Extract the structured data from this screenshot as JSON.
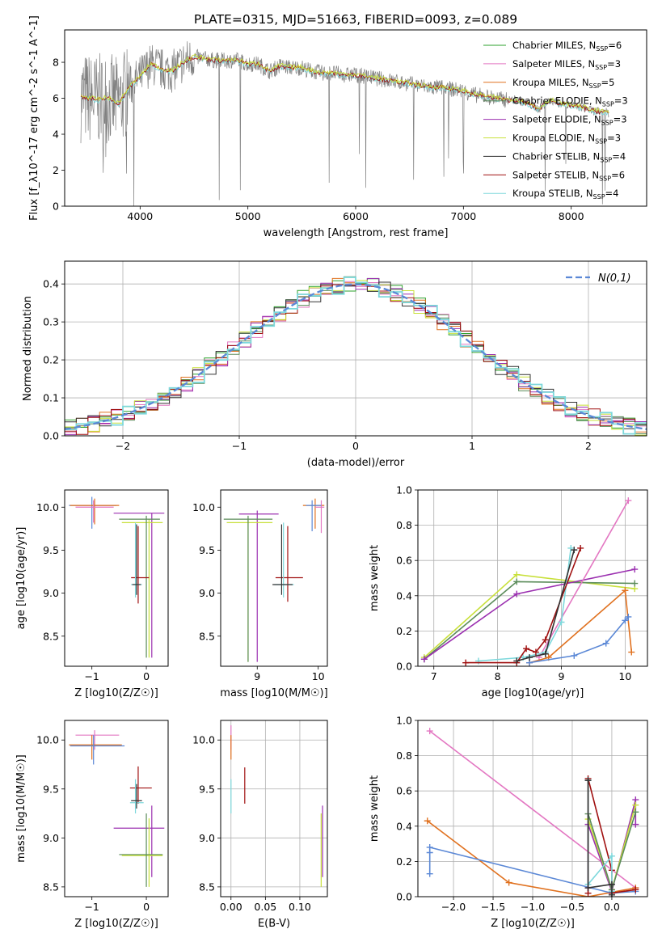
{
  "figure": {
    "title": "PLATE=0315, MJD=51663, FIBERID=0093, z=0.089"
  },
  "legend_entries": [
    {
      "label": "Chabrier MILES, N_{SSP}=6",
      "color": "#2ca02c"
    },
    {
      "label": "Salpeter MILES, N_{SSP}=3",
      "color": "#e377c2"
    },
    {
      "label": "Kroupa MILES, N_{SSP}=5",
      "color": "#e0711f"
    },
    {
      "label": "Chabrier ELODIE, N_{SSP}=3",
      "color": "#5b8c5a"
    },
    {
      "label": "Salpeter ELODIE, N_{SSP}=3",
      "color": "#9b30b0"
    },
    {
      "label": "Kroupa ELODIE, N_{SSP}=3",
      "color": "#c8e03a"
    },
    {
      "label": "Chabrier STELIB, N_{SSP}=4",
      "color": "#333333"
    },
    {
      "label": "Salpeter STELIB, N_{SSP}=6",
      "color": "#a01010"
    },
    {
      "label": "Kroupa STELIB, N_{SSP}=4",
      "color": "#7dd8dc"
    }
  ],
  "chart_data": [
    {
      "id": "spectrum",
      "type": "line",
      "xlabel": "wavelength [Angstrom, rest frame]",
      "ylabel": "Flux [f_λ10^-17 erg cm^-2 s^-1 A^-1]",
      "xlim": [
        3300,
        8700
      ],
      "ylim": [
        0,
        9.8
      ],
      "xticks": [
        4000,
        5000,
        6000,
        7000,
        8000
      ],
      "yticks": [
        0,
        2,
        4,
        6,
        8
      ],
      "data_color": "#808080",
      "model_colors": [
        "#7dd8dc",
        "#a01010",
        "#c8e03a"
      ],
      "continuum": [
        [
          3450,
          6.1
        ],
        [
          3600,
          5.9
        ],
        [
          3700,
          6.0
        ],
        [
          3800,
          5.7
        ],
        [
          3900,
          6.6
        ],
        [
          4000,
          7.2
        ],
        [
          4100,
          7.9
        ],
        [
          4200,
          7.6
        ],
        [
          4300,
          7.5
        ],
        [
          4400,
          8.0
        ],
        [
          4500,
          8.3
        ],
        [
          4600,
          8.2
        ],
        [
          4700,
          8.1
        ],
        [
          4800,
          8.1
        ],
        [
          4900,
          8.1
        ],
        [
          5000,
          7.9
        ],
        [
          5100,
          7.9
        ],
        [
          5200,
          7.5
        ],
        [
          5300,
          7.8
        ],
        [
          5400,
          7.7
        ],
        [
          5500,
          7.7
        ],
        [
          5600,
          7.5
        ],
        [
          5700,
          7.4
        ],
        [
          5800,
          7.4
        ],
        [
          5900,
          7.3
        ],
        [
          6000,
          7.3
        ],
        [
          6100,
          7.2
        ],
        [
          6200,
          7.1
        ],
        [
          6300,
          7.0
        ],
        [
          6400,
          6.9
        ],
        [
          6500,
          6.8
        ],
        [
          6600,
          6.7
        ],
        [
          6700,
          6.6
        ],
        [
          6800,
          6.6
        ],
        [
          6900,
          6.5
        ],
        [
          7000,
          6.4
        ],
        [
          7100,
          6.2
        ],
        [
          7200,
          6.1
        ],
        [
          7300,
          6.0
        ],
        [
          7400,
          5.9
        ],
        [
          7500,
          5.9
        ],
        [
          7600,
          5.7
        ],
        [
          7700,
          5.4
        ],
        [
          7800,
          5.9
        ],
        [
          7900,
          5.7
        ],
        [
          8000,
          5.6
        ],
        [
          8100,
          5.5
        ],
        [
          8200,
          5.3
        ],
        [
          8350,
          5.2
        ]
      ]
    },
    {
      "id": "residuals",
      "type": "histogram",
      "xlabel": "(data-model)/error",
      "ylabel": "Normed distribution",
      "xlim": [
        -2.5,
        2.5
      ],
      "ylim": [
        0,
        0.46
      ],
      "xticks": [
        -2,
        -1,
        0,
        1,
        2
      ],
      "yticks": [
        0.0,
        0.1,
        0.2,
        0.3,
        0.4
      ],
      "normal_label": "N(0,1)",
      "normal_color": "#5b88d6"
    },
    {
      "id": "age_vs_Z",
      "type": "errorbar",
      "xlabel": "Z [log10(Z/Z☉)]",
      "ylabel": "age  [log10(age/yr)]",
      "xlim": [
        -1.5,
        0.4
      ],
      "ylim": [
        8.15,
        10.2
      ],
      "xticks": [
        -1,
        0
      ],
      "yticks": [
        8.5,
        9.0,
        9.5,
        10.0
      ],
      "points": [
        {
          "x": -1.0,
          "y": 10.02,
          "xlo": -1.42,
          "xhi": -0.55,
          "ylo": 9.75,
          "yhi": 10.12,
          "color": "#5b88d6"
        },
        {
          "x": -0.95,
          "y": 10.02,
          "xlo": -1.4,
          "xhi": -0.5,
          "ylo": 9.8,
          "yhi": 10.1,
          "color": "#e0711f"
        },
        {
          "x": -0.97,
          "y": 10.0,
          "xlo": -1.3,
          "xhi": -0.6,
          "ylo": 9.82,
          "yhi": 10.08,
          "color": "#e377c2"
        },
        {
          "x": 0.1,
          "y": 9.93,
          "xlo": -0.6,
          "xhi": 0.33,
          "ylo": 8.25,
          "yhi": 9.93,
          "color": "#9b30b0"
        },
        {
          "x": 0.05,
          "y": 9.82,
          "xlo": -0.45,
          "xhi": 0.3,
          "ylo": 8.25,
          "yhi": 9.86,
          "color": "#c8e03a"
        },
        {
          "x": 0.0,
          "y": 9.86,
          "xlo": -0.5,
          "xhi": 0.25,
          "ylo": 8.25,
          "yhi": 9.9,
          "color": "#5b8c5a"
        },
        {
          "x": -0.15,
          "y": 9.18,
          "xlo": -0.28,
          "xhi": 0.05,
          "ylo": 8.88,
          "yhi": 9.78,
          "color": "#a01010"
        },
        {
          "x": -0.2,
          "y": 9.1,
          "xlo": -0.28,
          "xhi": -0.08,
          "ylo": 8.95,
          "yhi": 9.82,
          "color": "#7dd8dc"
        },
        {
          "x": -0.18,
          "y": 9.1,
          "xlo": -0.26,
          "xhi": -0.1,
          "ylo": 8.98,
          "yhi": 9.8,
          "color": "#333333"
        }
      ]
    },
    {
      "id": "age_vs_mass",
      "type": "errorbar",
      "xlabel": "mass [log10(M/M☉)]",
      "ylabel": "",
      "xlim": [
        8.4,
        10.15
      ],
      "ylim": [
        8.15,
        10.2
      ],
      "xticks": [
        9,
        10
      ],
      "yticks": [
        8.5,
        9.0,
        9.5,
        10.0
      ],
      "points": [
        {
          "x": 9.95,
          "y": 10.02,
          "xlo": 9.75,
          "xhi": 10.1,
          "ylo": 9.75,
          "yhi": 10.1,
          "color": "#e0711f"
        },
        {
          "x": 10.05,
          "y": 10.0,
          "xlo": 9.95,
          "xhi": 10.1,
          "ylo": 9.7,
          "yhi": 10.08,
          "color": "#e377c2"
        },
        {
          "x": 9.9,
          "y": 10.02,
          "xlo": 9.8,
          "xhi": 10.05,
          "ylo": 9.72,
          "yhi": 10.08,
          "color": "#5b88d6"
        },
        {
          "x": 9.0,
          "y": 9.92,
          "xlo": 8.7,
          "xhi": 9.35,
          "ylo": 8.2,
          "yhi": 9.96,
          "color": "#9b30b0"
        },
        {
          "x": 8.85,
          "y": 9.82,
          "xlo": 8.5,
          "xhi": 9.25,
          "ylo": 8.2,
          "yhi": 9.86,
          "color": "#c8e03a"
        },
        {
          "x": 8.85,
          "y": 9.86,
          "xlo": 8.45,
          "xhi": 9.25,
          "ylo": 8.2,
          "yhi": 9.9,
          "color": "#5b8c5a"
        },
        {
          "x": 9.5,
          "y": 9.18,
          "xlo": 9.3,
          "xhi": 9.75,
          "ylo": 8.9,
          "yhi": 9.78,
          "color": "#a01010"
        },
        {
          "x": 9.43,
          "y": 9.1,
          "xlo": 9.28,
          "xhi": 9.6,
          "ylo": 8.95,
          "yhi": 9.82,
          "color": "#7dd8dc"
        },
        {
          "x": 9.4,
          "y": 9.1,
          "xlo": 9.25,
          "xhi": 9.58,
          "ylo": 8.98,
          "yhi": 9.8,
          "color": "#333333"
        }
      ]
    },
    {
      "id": "weight_vs_age",
      "type": "line",
      "xlabel": "age  [log10(age/yr)]",
      "ylabel": "mass weight",
      "xlim": [
        6.75,
        10.35
      ],
      "ylim": [
        0,
        1.0
      ],
      "xticks": [
        7,
        8,
        9,
        10
      ],
      "yticks": [
        0.0,
        0.2,
        0.4,
        0.6,
        0.8,
        1.0
      ],
      "series": [
        {
          "color": "#c8e03a",
          "x": [
            6.85,
            8.3,
            10.15
          ],
          "y": [
            0.05,
            0.52,
            0.44
          ]
        },
        {
          "color": "#5b8c5a",
          "x": [
            6.85,
            8.3,
            10.15
          ],
          "y": [
            0.04,
            0.48,
            0.47
          ]
        },
        {
          "color": "#9b30b0",
          "x": [
            6.85,
            8.3,
            10.15
          ],
          "y": [
            0.04,
            0.41,
            0.55
          ]
        },
        {
          "color": "#e377c2",
          "x": [
            8.65,
            10.05
          ],
          "y": [
            0.05,
            0.94
          ]
        },
        {
          "color": "#e0711f",
          "x": [
            8.5,
            8.8,
            10.0,
            10.1
          ],
          "y": [
            0.02,
            0.05,
            0.43,
            0.08
          ]
        },
        {
          "color": "#5b88d6",
          "x": [
            8.5,
            9.2,
            9.7,
            10.0,
            10.05
          ],
          "y": [
            0.02,
            0.06,
            0.13,
            0.26,
            0.28
          ]
        },
        {
          "color": "#7dd8dc",
          "x": [
            7.7,
            8.4,
            8.75,
            9.0,
            9.15
          ],
          "y": [
            0.03,
            0.05,
            0.08,
            0.25,
            0.67
          ]
        },
        {
          "color": "#a01010",
          "x": [
            7.5,
            8.3,
            8.45,
            8.6,
            8.75,
            9.3
          ],
          "y": [
            0.02,
            0.02,
            0.1,
            0.08,
            0.15,
            0.67
          ]
        },
        {
          "color": "#333333",
          "x": [
            8.3,
            8.5,
            8.75,
            9.2
          ],
          "y": [
            0.03,
            0.05,
            0.07,
            0.66
          ]
        }
      ]
    },
    {
      "id": "mass_vs_Z",
      "type": "errorbar",
      "xlabel": "Z [log10(Z/Z☉)]",
      "ylabel": "mass [log10(M/M☉)]",
      "xlim": [
        -1.5,
        0.4
      ],
      "ylim": [
        8.4,
        10.2
      ],
      "xticks": [
        -1,
        0
      ],
      "yticks": [
        8.5,
        9.0,
        9.5,
        10.0
      ],
      "points": [
        {
          "x": -0.95,
          "y": 10.05,
          "xlo": -1.3,
          "xhi": -0.5,
          "ylo": 9.9,
          "yhi": 10.1,
          "color": "#e377c2"
        },
        {
          "x": -1.0,
          "y": 9.95,
          "xlo": -1.42,
          "xhi": -0.45,
          "ylo": 9.8,
          "yhi": 10.05,
          "color": "#e0711f"
        },
        {
          "x": -0.97,
          "y": 9.94,
          "xlo": -1.4,
          "xhi": -0.4,
          "ylo": 9.75,
          "yhi": 10.05,
          "color": "#5b88d6"
        },
        {
          "x": -0.15,
          "y": 9.51,
          "xlo": -0.3,
          "xhi": 0.1,
          "ylo": 9.35,
          "yhi": 9.73,
          "color": "#a01010"
        },
        {
          "x": -0.2,
          "y": 9.36,
          "xlo": -0.3,
          "xhi": -0.05,
          "ylo": 9.25,
          "yhi": 9.6,
          "color": "#7dd8dc"
        },
        {
          "x": -0.18,
          "y": 9.38,
          "xlo": -0.28,
          "xhi": -0.08,
          "ylo": 9.3,
          "yhi": 9.55,
          "color": "#333333"
        },
        {
          "x": 0.1,
          "y": 9.1,
          "xlo": -0.6,
          "xhi": 0.33,
          "ylo": 8.6,
          "yhi": 9.33,
          "color": "#9b30b0"
        },
        {
          "x": 0.05,
          "y": 8.82,
          "xlo": -0.45,
          "xhi": 0.3,
          "ylo": 8.5,
          "yhi": 9.2,
          "color": "#c8e03a"
        },
        {
          "x": 0.0,
          "y": 8.83,
          "xlo": -0.5,
          "xhi": 0.3,
          "ylo": 8.5,
          "yhi": 9.25,
          "color": "#5b8c5a"
        }
      ]
    },
    {
      "id": "mass_vs_EBV",
      "type": "errorbar",
      "xlabel": "E(B-V)",
      "ylabel": "",
      "xlim": [
        -0.015,
        0.14
      ],
      "ylim": [
        8.4,
        10.2
      ],
      "xticks": [
        0.0,
        0.05,
        0.1
      ],
      "xtick_labels": [
        "0.00",
        "0.05",
        "0.10"
      ],
      "yticks": [
        8.5,
        9.0,
        9.5,
        10.0
      ],
      "points": [
        {
          "x": 0.0,
          "y": 10.05,
          "ylo": 9.9,
          "yhi": 10.15,
          "color": "#e377c2"
        },
        {
          "x": 0.0,
          "y": 9.95,
          "ylo": 9.8,
          "yhi": 10.05,
          "color": "#e0711f"
        },
        {
          "x": 0.0,
          "y": 9.4,
          "ylo": 9.25,
          "yhi": 9.6,
          "color": "#7dd8dc"
        },
        {
          "x": 0.02,
          "y": 9.5,
          "ylo": 9.35,
          "yhi": 9.72,
          "color": "#a01010"
        },
        {
          "x": 0.133,
          "y": 9.1,
          "ylo": 8.6,
          "yhi": 9.33,
          "color": "#9b30b0"
        },
        {
          "x": 0.131,
          "y": 8.85,
          "ylo": 8.5,
          "yhi": 9.25,
          "color": "#c8e03a"
        }
      ]
    },
    {
      "id": "weight_vs_Z",
      "type": "line",
      "xlabel": "Z [log10(Z/Z☉)]",
      "ylabel": "mass weight",
      "xlim": [
        -2.45,
        0.45
      ],
      "ylim": [
        0,
        1.0
      ],
      "xticks": [
        -2.0,
        -1.5,
        -1.0,
        -0.5,
        0.0
      ],
      "xtick_labels": [
        "−2.0",
        "−1.5",
        "−1.0",
        "−0.5",
        "0.0"
      ],
      "yticks": [
        0.0,
        0.2,
        0.4,
        0.6,
        0.8,
        1.0
      ],
      "series": [
        {
          "color": "#e377c2",
          "x": [
            -2.3,
            0.3
          ],
          "y": [
            0.94,
            0.05
          ]
        },
        {
          "color": "#e0711f",
          "x": [
            -2.33,
            -1.3,
            -0.3,
            0.3
          ],
          "y": [
            0.43,
            0.08,
            0.0,
            0.05
          ]
        },
        {
          "color": "#5b88d6",
          "x": [
            -2.3,
            -2.3,
            -2.3,
            0.0,
            0.3
          ],
          "y": [
            0.13,
            0.25,
            0.28,
            0.02,
            0.03
          ]
        },
        {
          "color": "#9b30b0",
          "x": [
            -0.3,
            -0.3,
            0.0,
            0.3,
            0.3
          ],
          "y": [
            0.05,
            0.41,
            0.03,
            0.55,
            0.41
          ]
        },
        {
          "color": "#c8e03a",
          "x": [
            -0.3,
            0.0,
            0.3
          ],
          "y": [
            0.44,
            0.04,
            0.52
          ]
        },
        {
          "color": "#5b8c5a",
          "x": [
            -0.3,
            0.0,
            0.3
          ],
          "y": [
            0.47,
            0.04,
            0.48
          ]
        },
        {
          "color": "#a01010",
          "x": [
            -0.3,
            -0.3,
            0.0,
            0.0,
            0.3
          ],
          "y": [
            0.02,
            0.67,
            0.15,
            0.02,
            0.04
          ]
        },
        {
          "color": "#7dd8dc",
          "x": [
            -0.3,
            -0.3,
            0.0,
            0.0
          ],
          "y": [
            0.66,
            0.07,
            0.23,
            0.03
          ]
        },
        {
          "color": "#333333",
          "x": [
            -0.3,
            -0.3,
            0.0,
            0.0
          ],
          "y": [
            0.66,
            0.05,
            0.07,
            0.01
          ]
        }
      ]
    }
  ]
}
